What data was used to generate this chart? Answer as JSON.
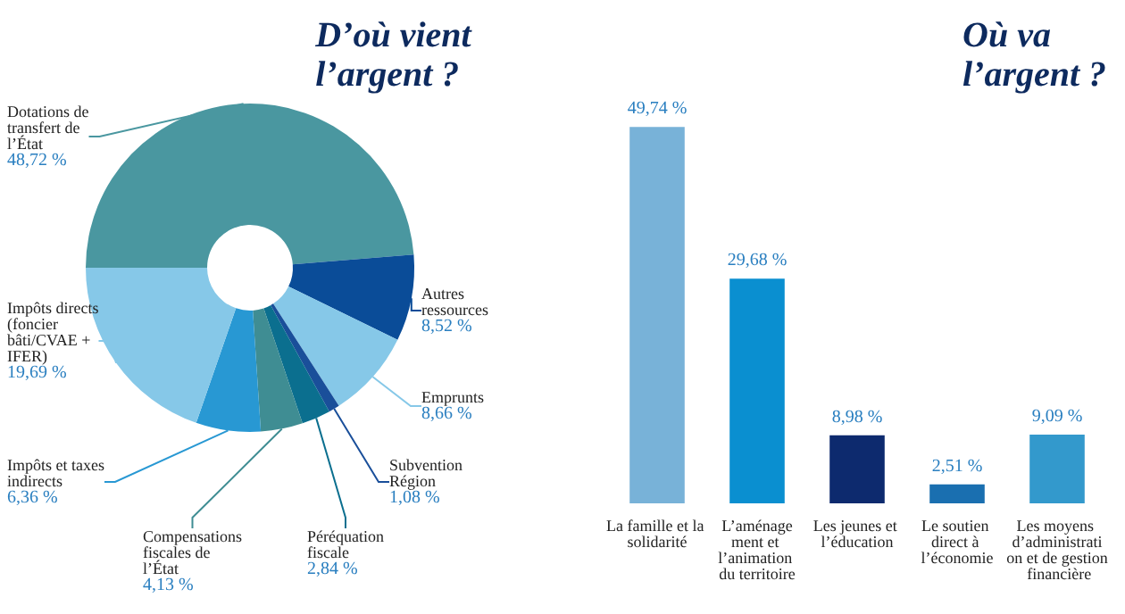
{
  "chart_data": [
    {
      "type": "donut",
      "title": "D’où vient\nl’argent ?",
      "categories": [
        "Dotations de transfert de l’État",
        "Autres ressources",
        "Emprunts",
        "Subvention Région",
        "Péréquation fiscale",
        "Compensations fiscales de l’État",
        "Impôts et taxes indirects",
        "Impôts directs (foncier bâti/CVAE + IFER)"
      ],
      "values": [
        48.72,
        8.52,
        8.66,
        1.08,
        2.84,
        4.13,
        6.36,
        19.69
      ],
      "value_labels": [
        "48,72 %",
        "8,52 %",
        "8,66 %",
        "1,08 %",
        "2,84 %",
        "4,13 %",
        "6,36 %",
        "19,69 %"
      ],
      "colors": [
        "#4a97a0",
        "#0a4c98",
        "#86c8e8",
        "#1a4f9a",
        "#0b6f8f",
        "#3f8d93",
        "#2898d3",
        "#86c8e8"
      ]
    },
    {
      "type": "bar",
      "title": "Où va\nl’argent ?",
      "categories": [
        "La famille et la solidarité",
        "L’aménagement et l’animation du territoire",
        "Les jeunes et l’éducation",
        "Le soutien direct à l’économie",
        "Les moyens d’administration et de gestion financière"
      ],
      "values": [
        49.74,
        29.68,
        8.98,
        2.51,
        9.09
      ],
      "value_labels": [
        "49,74 %",
        "29,68 %",
        "8,98 %",
        "2,51 %",
        "9,09 %"
      ],
      "colors": [
        "#78b2d8",
        "#0a8fd0",
        "#0d2a6e",
        "#1a6fb0",
        "#3399cc"
      ]
    }
  ]
}
